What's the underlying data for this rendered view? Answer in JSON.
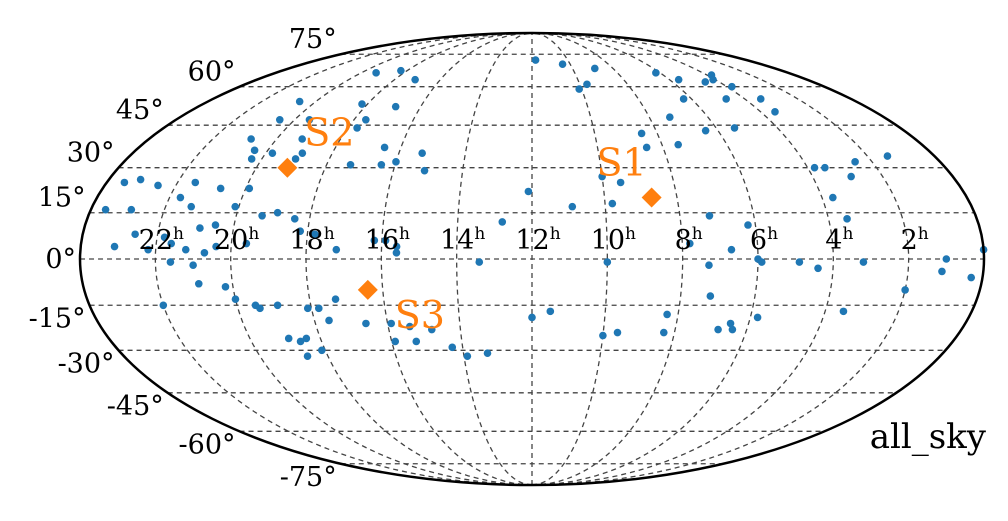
{
  "chart_data": {
    "type": "scatter",
    "projection": "mollweide",
    "title": "",
    "corner_label": "all_sky",
    "grid": true,
    "lat_ticks": [
      "75°",
      "60°",
      "45°",
      "30°",
      "15°",
      "0°",
      "-15°",
      "-30°",
      "-45°",
      "-60°",
      "-75°"
    ],
    "ra_ticks": [
      "22",
      "20",
      "18",
      "16",
      "14",
      "12",
      "10",
      "8",
      "6",
      "4",
      "2"
    ],
    "ra_tick_suffix": "h",
    "colors": {
      "points": "#1f77b4",
      "sources": "#ff7f0e",
      "grid": "#444444",
      "outline": "#000000"
    },
    "sources": [
      {
        "name": "S1",
        "ra": 8.7,
        "dec": 20
      },
      {
        "name": "S2",
        "ra": 19.1,
        "dec": 30
      },
      {
        "name": "S3",
        "ra": 16.4,
        "dec": -10
      }
    ],
    "points": [
      [
        11.8,
        72
      ],
      [
        19.3,
        66
      ],
      [
        18.3,
        67
      ],
      [
        17.1,
        63
      ],
      [
        9.7,
        61
      ],
      [
        16.9,
        52
      ],
      [
        18.2,
        53
      ],
      [
        20.6,
        54
      ],
      [
        19.5,
        47
      ],
      [
        20.5,
        47
      ],
      [
        19.2,
        40
      ],
      [
        17.7,
        44
      ],
      [
        20.8,
        40
      ],
      [
        20.4,
        36
      ],
      [
        19.8,
        35
      ],
      [
        18.9,
        35
      ],
      [
        20.3,
        33
      ],
      [
        19.0,
        33
      ],
      [
        16.4,
        31
      ],
      [
        16.0,
        32
      ],
      [
        17.3,
        31
      ],
      [
        15.1,
        29
      ],
      [
        8.5,
        42
      ],
      [
        8.5,
        37
      ],
      [
        7.5,
        38
      ],
      [
        6.4,
        43
      ],
      [
        7.3,
        48
      ],
      [
        5.4,
        44
      ],
      [
        6.3,
        55
      ],
      [
        4.7,
        55
      ],
      [
        4.6,
        62
      ],
      [
        5.6,
        63
      ],
      [
        3.8,
        60
      ],
      [
        3.4,
        55
      ],
      [
        3.5,
        50
      ],
      [
        3.8,
        65
      ],
      [
        4.1,
        63
      ],
      [
        10.4,
        70
      ],
      [
        8.9,
        68
      ],
      [
        6.2,
        66
      ],
      [
        10.1,
        59
      ],
      [
        22.5,
        24
      ],
      [
        23.6,
        16
      ],
      [
        23.1,
        26
      ],
      [
        21.5,
        25
      ],
      [
        21.7,
        20
      ],
      [
        21.3,
        17
      ],
      [
        20.7,
        23
      ],
      [
        19.9,
        23
      ],
      [
        20.1,
        17
      ],
      [
        19.3,
        14
      ],
      [
        18.9,
        15
      ],
      [
        18.4,
        13
      ],
      [
        20.9,
        10
      ],
      [
        20.5,
        11
      ],
      [
        23.1,
        4
      ],
      [
        22.6,
        8
      ],
      [
        22.2,
        3
      ],
      [
        21.8,
        7
      ],
      [
        21.6,
        5
      ],
      [
        21.2,
        3
      ],
      [
        20.7,
        2
      ],
      [
        20.4,
        4
      ],
      [
        19.6,
        5
      ],
      [
        18.2,
        9
      ],
      [
        17.8,
        8
      ],
      [
        16.2,
        6
      ],
      [
        15.9,
        6
      ],
      [
        15.6,
        4
      ],
      [
        12.1,
        22
      ],
      [
        12.8,
        12
      ],
      [
        10.9,
        17
      ],
      [
        10.0,
        27
      ],
      [
        9.8,
        18
      ],
      [
        9.5,
        25
      ],
      [
        7.2,
        14
      ],
      [
        6.2,
        11
      ],
      [
        7.8,
        5
      ],
      [
        4.4,
        -3
      ],
      [
        6.0,
        0
      ],
      [
        6.7,
        3
      ],
      [
        4.9,
        -1
      ],
      [
        7.3,
        -2
      ],
      [
        5.9,
        -1
      ],
      [
        3.2,
        -1
      ],
      [
        3.5,
        13
      ],
      [
        3.7,
        20
      ],
      [
        3.5,
        30
      ],
      [
        3.8,
        30
      ],
      [
        2.9,
        27
      ],
      [
        1.4,
        34
      ],
      [
        2.5,
        32
      ],
      [
        1.0,
        0
      ],
      [
        1.1,
        -4
      ],
      [
        0.3,
        -6
      ],
      [
        2.0,
        -10
      ],
      [
        3.5,
        -17
      ],
      [
        5.8,
        -19
      ],
      [
        6.5,
        -21
      ],
      [
        6.8,
        -23
      ],
      [
        6.4,
        -23
      ],
      [
        21.0,
        -2
      ],
      [
        20.9,
        -8
      ],
      [
        20.0,
        -13
      ],
      [
        19.5,
        -15
      ],
      [
        18.9,
        -15
      ],
      [
        19.4,
        -16
      ],
      [
        17.3,
        -13
      ],
      [
        17.8,
        -16
      ],
      [
        18.1,
        -16
      ],
      [
        17.6,
        -20
      ],
      [
        20.2,
        -9
      ],
      [
        16.3,
        -10
      ],
      [
        16.6,
        -21
      ],
      [
        15.9,
        -21
      ],
      [
        15.9,
        -27
      ],
      [
        15.4,
        -22
      ],
      [
        15.3,
        -27
      ],
      [
        14.8,
        -23
      ],
      [
        14.3,
        -29
      ],
      [
        13.9,
        -32
      ],
      [
        13.3,
        -31
      ],
      [
        13.4,
        -1
      ],
      [
        12.0,
        -19
      ],
      [
        11.5,
        -17
      ],
      [
        10.0,
        -25
      ],
      [
        9.6,
        -24
      ],
      [
        10.0,
        -1
      ],
      [
        18.1,
        -30
      ],
      [
        18.4,
        -26
      ],
      [
        18.9,
        -26
      ],
      [
        18.6,
        -32
      ],
      [
        18.6,
        -27
      ],
      [
        22.0,
        -15
      ],
      [
        21.6,
        -1
      ],
      [
        17.2,
        3
      ],
      [
        15.6,
        2
      ],
      [
        8.3,
        -18
      ],
      [
        8.3,
        -24
      ],
      [
        7.2,
        -12
      ],
      [
        23.5,
        25
      ],
      [
        0.0,
        3
      ],
      [
        22.9,
        16
      ],
      [
        17.6,
        47
      ],
      [
        15.3,
        35
      ],
      [
        16.5,
        37
      ]
    ]
  }
}
